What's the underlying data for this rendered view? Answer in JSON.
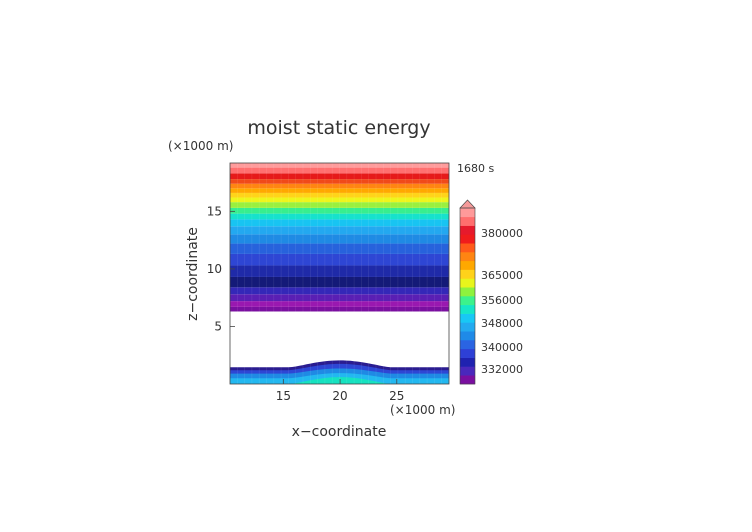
{
  "chart_data": {
    "type": "heatmap",
    "title": "moist static energy",
    "xlabel": "x−coordinate",
    "ylabel": "z−coordinate",
    "x_unit": "(×1000 m)",
    "y_unit": "(×1000 m)",
    "time_label": "1680 s",
    "xlim": [
      10.3,
      29.6
    ],
    "ylim": [
      0,
      19.2
    ],
    "xticks": [
      "15",
      "20",
      "25"
    ],
    "yticks": [
      "5",
      "10",
      "15"
    ],
    "grid": false,
    "colorbar": {
      "labels": [
        "380000",
        "365000",
        "356000",
        "348000",
        "340000",
        "332000"
      ],
      "colors": [
        "#7a0fa0",
        "#4a28bc",
        "#1f22b0",
        "#2e40d6",
        "#2a64e2",
        "#1f8ae8",
        "#23aaf0",
        "#18c8f5",
        "#16e6c8",
        "#3cf28c",
        "#8ef23e",
        "#e8f51c",
        "#ffd21a",
        "#ffa800",
        "#ff8512",
        "#ff5a1a",
        "#f01c1c",
        "#e61a2c",
        "#ff6e6e",
        "#ff9a9a"
      ],
      "extend_max_color": "#f59a9a",
      "extend_max": true
    },
    "upper_bands": [
      {
        "z0": 6.3,
        "z1": 6.7,
        "color": "#7a0fa0"
      },
      {
        "z0": 6.7,
        "z1": 7.2,
        "color": "#9a18b0"
      },
      {
        "z0": 7.2,
        "z1": 7.8,
        "color": "#5a1fb4"
      },
      {
        "z0": 7.8,
        "z1": 8.4,
        "color": "#3428b8"
      },
      {
        "z0": 8.4,
        "z1": 9.3,
        "color": "#141a78"
      },
      {
        "z0": 9.3,
        "z1": 10.3,
        "color": "#1f2aa8"
      },
      {
        "z0": 10.3,
        "z1": 11.3,
        "color": "#2e46d4"
      },
      {
        "z0": 11.3,
        "z1": 12.2,
        "color": "#2762dc"
      },
      {
        "z0": 12.2,
        "z1": 13.0,
        "color": "#1f8ae4"
      },
      {
        "z0": 13.0,
        "z1": 13.7,
        "color": "#23a8f0"
      },
      {
        "z0": 13.7,
        "z1": 14.3,
        "color": "#18c4f2"
      },
      {
        "z0": 14.3,
        "z1": 14.8,
        "color": "#16e2cc"
      },
      {
        "z0": 14.8,
        "z1": 15.3,
        "color": "#38ee8e"
      },
      {
        "z0": 15.3,
        "z1": 15.8,
        "color": "#9af03e"
      },
      {
        "z0": 15.8,
        "z1": 16.2,
        "color": "#eef51c"
      },
      {
        "z0": 16.2,
        "z1": 16.6,
        "color": "#ffd41a"
      },
      {
        "z0": 16.6,
        "z1": 17.0,
        "color": "#ffa800"
      },
      {
        "z0": 17.0,
        "z1": 17.4,
        "color": "#ff8512"
      },
      {
        "z0": 17.4,
        "z1": 17.8,
        "color": "#f04a1a"
      },
      {
        "z0": 17.8,
        "z1": 18.3,
        "color": "#e61a1a"
      },
      {
        "z0": 18.3,
        "z1": 18.8,
        "color": "#ff7070"
      },
      {
        "z0": 18.8,
        "z1": 19.2,
        "color": "#ff9c9c"
      }
    ],
    "lower_layers": [
      {
        "ztop_edge": 1.45,
        "ztop_center": 2.05,
        "color": "#2a1c90"
      },
      {
        "ztop_edge": 1.2,
        "ztop_center": 1.75,
        "color": "#2e46d4"
      },
      {
        "ztop_edge": 0.9,
        "ztop_center": 1.35,
        "color": "#1f8ae4"
      },
      {
        "ztop_edge": 0.5,
        "ztop_center": 0.95,
        "color": "#23b8f0"
      },
      {
        "ztop_edge": 0.0,
        "ztop_center": 0.6,
        "color": "#16e2c0"
      }
    ]
  }
}
